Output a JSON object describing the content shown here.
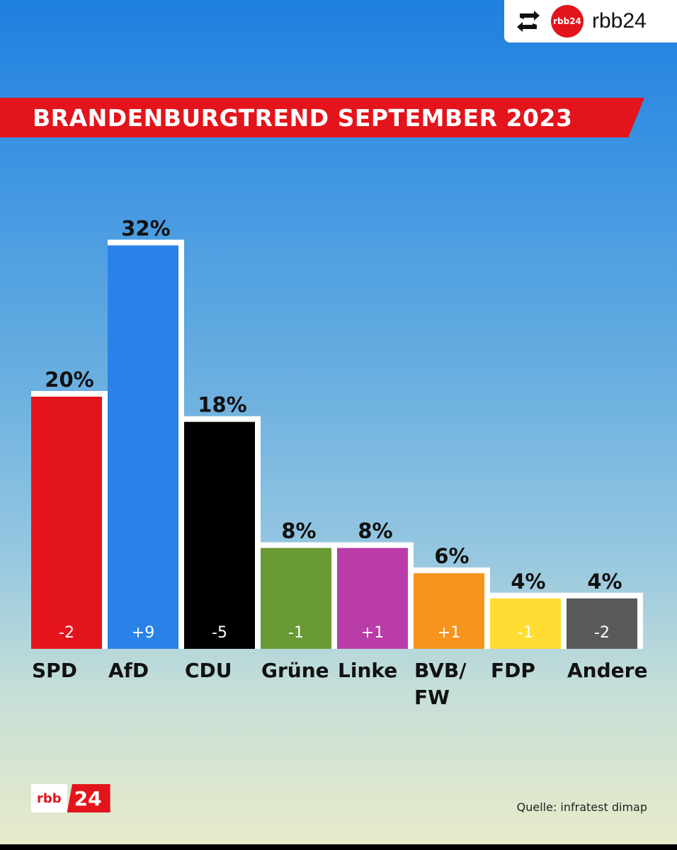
{
  "repost": {
    "logo_text": "rbb24",
    "account": "rbb24",
    "icon": "repost-icon"
  },
  "footer": {
    "logo_left": "rbb",
    "logo_right": "24",
    "source": "Quelle: infratest dimap"
  },
  "colors": {
    "title_band": "#e3141b",
    "bar_outline": "#ffffff"
  },
  "chart_data": {
    "type": "bar",
    "title": "BRANDENBURGTREND SEPTEMBER 2023",
    "categories": [
      "SPD",
      "AfD",
      "CDU",
      "Grüne",
      "Linke",
      "BVB/ FW",
      "FDP",
      "Andere"
    ],
    "values": [
      20,
      32,
      18,
      8,
      8,
      6,
      4,
      4
    ],
    "value_labels": [
      "20%",
      "32%",
      "18%",
      "8%",
      "8%",
      "6%",
      "4%",
      "4%"
    ],
    "changes": [
      "-2",
      "+9",
      "-5",
      "-1",
      "+1",
      "+1",
      "-1",
      "-2"
    ],
    "colors": [
      "#e3141b",
      "#2a82e8",
      "#000000",
      "#6a9a33",
      "#b93ca8",
      "#f7941d",
      "#ffdd33",
      "#5a5a5a"
    ],
    "xlabel": "",
    "ylabel": "",
    "grid": false
  }
}
